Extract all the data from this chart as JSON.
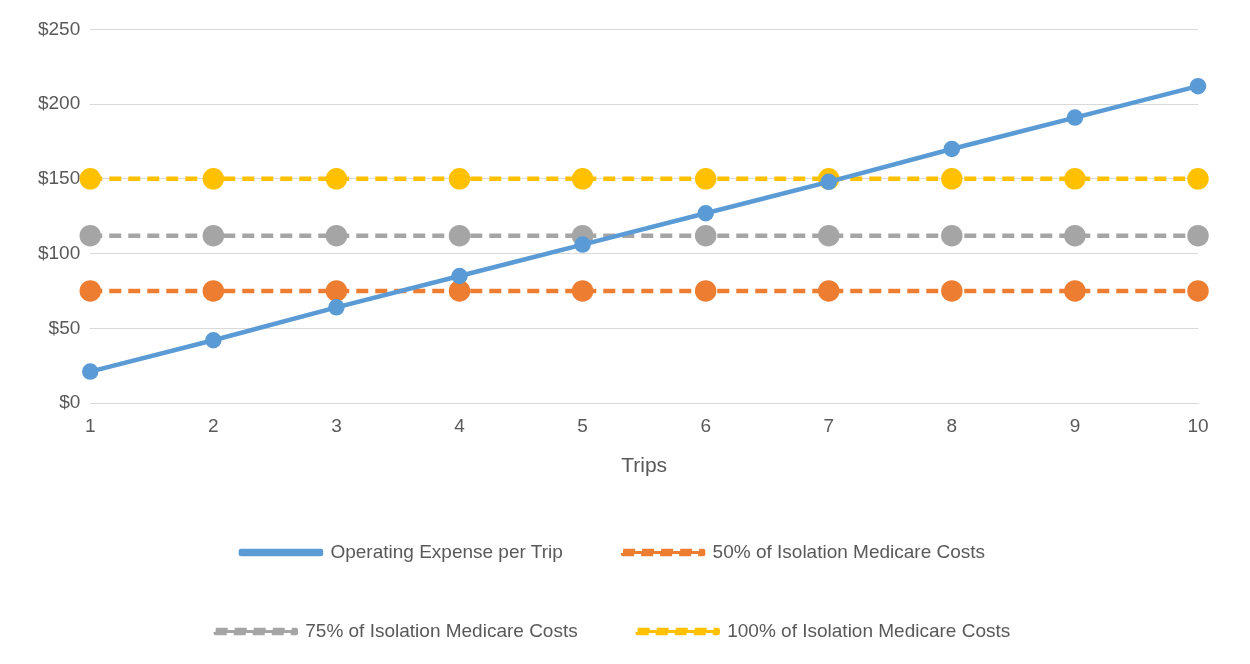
{
  "chart_data": {
    "type": "line",
    "xlabel": "Trips",
    "categories": [
      "1",
      "2",
      "3",
      "4",
      "5",
      "6",
      "7",
      "8",
      "9",
      "10"
    ],
    "series": [
      {
        "name": "Operating Expense per Trip",
        "color": "#5b9bd5",
        "line_style": "solid",
        "values": [
          21,
          42,
          64,
          85,
          106,
          127,
          148,
          170,
          191,
          212
        ]
      },
      {
        "name": "50% of Isolation Medicare Costs",
        "color": "#ed7d31",
        "line_style": "dashed",
        "values": [
          75,
          75,
          75,
          75,
          75,
          75,
          75,
          75,
          75,
          75
        ]
      },
      {
        "name": "75% of Isolation Medicare Costs",
        "color": "#a5a5a5",
        "line_style": "dashed",
        "values": [
          112,
          112,
          112,
          112,
          112,
          112,
          112,
          112,
          112,
          112
        ]
      },
      {
        "name": "100% of Isolation Medicare Costs",
        "color": "#ffc000",
        "line_style": "dashed",
        "values": [
          150,
          150,
          150,
          150,
          150,
          150,
          150,
          150,
          150,
          150
        ]
      }
    ],
    "ylim": [
      0,
      250
    ],
    "yticks": [
      {
        "value": 0,
        "label": "$0"
      },
      {
        "value": 50,
        "label": "$50"
      },
      {
        "value": 100,
        "label": "$100"
      },
      {
        "value": 150,
        "label": "$150"
      },
      {
        "value": 200,
        "label": "$200"
      },
      {
        "value": 250,
        "label": "$250"
      }
    ],
    "grid": "y",
    "legend": "bottom",
    "marker": "circle"
  }
}
